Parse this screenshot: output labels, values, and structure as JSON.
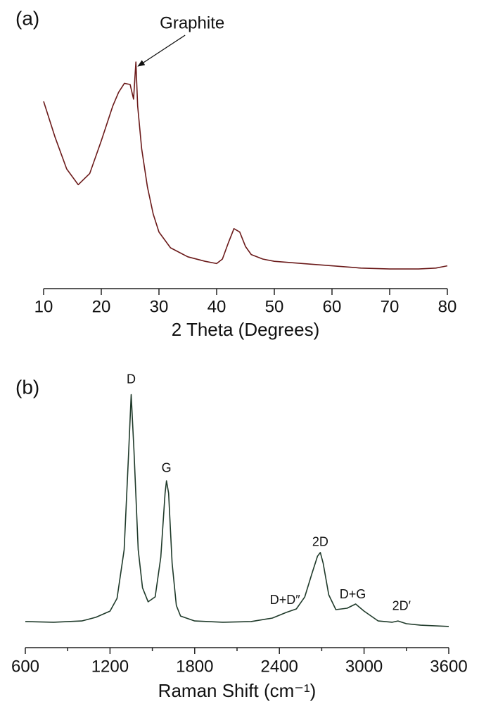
{
  "chart_data": [
    {
      "type": "line",
      "panel_label": "(a)",
      "xlabel": "2 Theta (Degrees)",
      "color": "#6b1a1a",
      "xlim": [
        10,
        80
      ],
      "xticks": [
        10,
        20,
        30,
        40,
        50,
        60,
        70,
        80
      ],
      "ylim": [
        0,
        100
      ],
      "x": [
        10,
        12,
        14,
        16,
        18,
        20,
        22,
        23,
        24,
        25,
        25.6,
        26,
        26.3,
        27,
        28,
        29,
        30,
        32,
        35,
        38,
        40,
        41,
        42,
        43,
        44,
        45,
        46,
        48,
        50,
        55,
        60,
        65,
        70,
        75,
        78,
        80
      ],
      "values": [
        80,
        64,
        50,
        43,
        48,
        62.5,
        78,
        84,
        88,
        87.5,
        81,
        97.5,
        78,
        59,
        42,
        30,
        22,
        15,
        11,
        9,
        8,
        10,
        17,
        23.5,
        22,
        15.6,
        12,
        10,
        9,
        8,
        7,
        6,
        5.6,
        5.6,
        6,
        7
      ],
      "annotations": [
        {
          "text": "Graphite",
          "x": 26,
          "y": 97.5,
          "arrow": true
        }
      ]
    },
    {
      "type": "line",
      "panel_label": "(b)",
      "xlabel": "Raman Shift (cm⁻¹)",
      "color": "#1f3a2a",
      "xlim": [
        600,
        3600
      ],
      "xticks": [
        600,
        1200,
        1800,
        2400,
        3000,
        3600
      ],
      "xminor": [
        900,
        1500,
        2100,
        2700,
        3300
      ],
      "ylim": [
        0,
        100
      ],
      "x": [
        600,
        800,
        1000,
        1100,
        1200,
        1250,
        1300,
        1330,
        1350,
        1370,
        1400,
        1430,
        1470,
        1520,
        1560,
        1590,
        1600,
        1615,
        1640,
        1670,
        1700,
        1800,
        2000,
        2200,
        2350,
        2450,
        2520,
        2580,
        2630,
        2670,
        2690,
        2710,
        2750,
        2800,
        2880,
        2940,
        3000,
        3100,
        3200,
        3240,
        3300,
        3400,
        3600
      ],
      "values": [
        4.9,
        4.6,
        5.1,
        6.6,
        9.1,
        14.3,
        34,
        71,
        97,
        74,
        34,
        18.6,
        12.9,
        14.9,
        31,
        57,
        62,
        57,
        28.6,
        11.4,
        7.1,
        5.1,
        4.6,
        4.9,
        6.3,
        8.6,
        10,
        14.9,
        24.3,
        31.4,
        32.9,
        28.6,
        15.7,
        9.7,
        10.3,
        12,
        9.1,
        5.1,
        4.6,
        5.1,
        4,
        3.4,
        2.9
      ],
      "annotations": [
        {
          "text": "D",
          "x": 1350,
          "y": 103
        },
        {
          "text": "G",
          "x": 1600,
          "y": 67
        },
        {
          "text": "2D",
          "x": 2690,
          "y": 37
        },
        {
          "text": "D+D″",
          "x": 2440,
          "y": 13.4
        },
        {
          "text": "D+G",
          "x": 2920,
          "y": 15.7
        },
        {
          "text": "2D′",
          "x": 3265,
          "y": 10.9
        }
      ]
    }
  ]
}
